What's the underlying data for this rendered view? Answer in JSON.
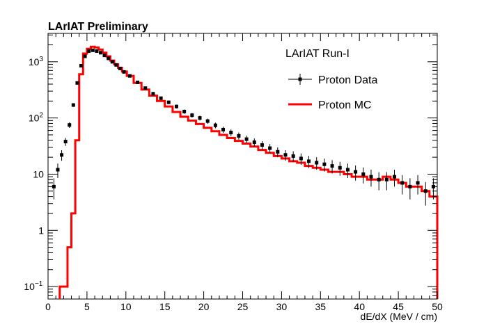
{
  "header": {
    "label": "LArIAT Preliminary"
  },
  "chart_data": {
    "type": "scatter",
    "xlabel": "dE/dX (MeV / cm)",
    "ylabel": "",
    "xlim": [
      0,
      50
    ],
    "ylim": [
      0.06,
      3200
    ],
    "y_scale": "log",
    "grid": false,
    "legend_position": "top-right",
    "legend": {
      "header": "LArIAT Run-I",
      "entries": [
        {
          "label": "Proton Data",
          "style": "points-with-errorbars",
          "color": "#000000"
        },
        {
          "label": "Proton MC",
          "style": "step-line",
          "color": "#ff0000"
        }
      ]
    },
    "x_ticks": [
      0,
      5,
      10,
      15,
      20,
      25,
      30,
      35,
      40,
      45,
      50
    ],
    "y_ticks": [
      {
        "value": 0.1,
        "base": "10",
        "exp": "−1"
      },
      {
        "value": 1,
        "base": "1",
        "exp": ""
      },
      {
        "value": 10,
        "base": "10",
        "exp": ""
      },
      {
        "value": 100,
        "base": "10",
        "exp": "2"
      },
      {
        "value": 1000,
        "base": "10",
        "exp": "3"
      }
    ],
    "series": [
      {
        "name": "Proton Data",
        "color": "#000000",
        "x": [
          0.75,
          1.25,
          1.75,
          2.25,
          2.75,
          3.25,
          3.75,
          4.25,
          4.75,
          5.25,
          5.75,
          6.25,
          6.75,
          7.25,
          7.75,
          8.25,
          8.75,
          9.25,
          9.75,
          10.5,
          11.5,
          12.5,
          13.5,
          14.5,
          15.5,
          16.5,
          17.5,
          18.5,
          19.5,
          20.5,
          21.5,
          22.5,
          23.5,
          24.5,
          25.5,
          26.5,
          27.5,
          28.5,
          29.5,
          30.5,
          31.5,
          32.5,
          33.5,
          34.5,
          35.5,
          36.5,
          37.5,
          38.5,
          39.5,
          40.5,
          41.5,
          42.5,
          43.5,
          44.5,
          45.5,
          46.5,
          47.5,
          48.5,
          49.5
        ],
        "values": [
          6,
          12,
          22,
          38,
          75,
          170,
          420,
          850,
          1250,
          1550,
          1600,
          1550,
          1450,
          1300,
          1150,
          1000,
          880,
          760,
          660,
          560,
          430,
          340,
          270,
          225,
          190,
          160,
          130,
          112,
          100,
          88,
          74,
          62,
          55,
          48,
          42,
          37,
          33,
          29,
          25,
          22,
          21,
          19,
          17,
          16,
          15,
          14,
          13,
          12,
          11,
          10,
          9,
          8,
          8,
          9,
          7,
          6,
          7,
          5,
          6
        ]
      },
      {
        "name": "Proton MC",
        "color": "#ff0000",
        "x": [
          1.75,
          2.25,
          2.75,
          3.25,
          3.75,
          4.25,
          4.75,
          5.25,
          5.75,
          6.25,
          6.75,
          7.25,
          7.75,
          8.25,
          8.75,
          9.25,
          9.75,
          10.5,
          11.5,
          12.5,
          13.5,
          14.5,
          15.5,
          16.5,
          17.5,
          18.5,
          19.5,
          20.5,
          21.5,
          22.5,
          23.5,
          24.5,
          25.5,
          26.5,
          27.5,
          28.5,
          29.5,
          30.5,
          31.5,
          32.5,
          33.5,
          34.5,
          35.5,
          36.5,
          37.5,
          38.5,
          39.5,
          40.5,
          41.5,
          42.5,
          43.5,
          44.5,
          45.5,
          46.5,
          47.5,
          48.5,
          49.5
        ],
        "values": [
          0.1,
          0.1,
          0.5,
          2,
          40,
          600,
          1400,
          1700,
          1850,
          1800,
          1650,
          1450,
          1250,
          1050,
          900,
          780,
          670,
          560,
          420,
          320,
          250,
          200,
          160,
          128,
          105,
          90,
          78,
          67,
          58,
          50,
          44,
          39,
          35,
          31,
          27,
          24,
          21,
          19,
          17,
          16,
          14,
          13,
          12,
          11,
          11,
          10,
          9,
          9,
          8,
          8,
          9,
          8,
          7,
          6,
          6,
          5,
          4
        ]
      }
    ]
  }
}
